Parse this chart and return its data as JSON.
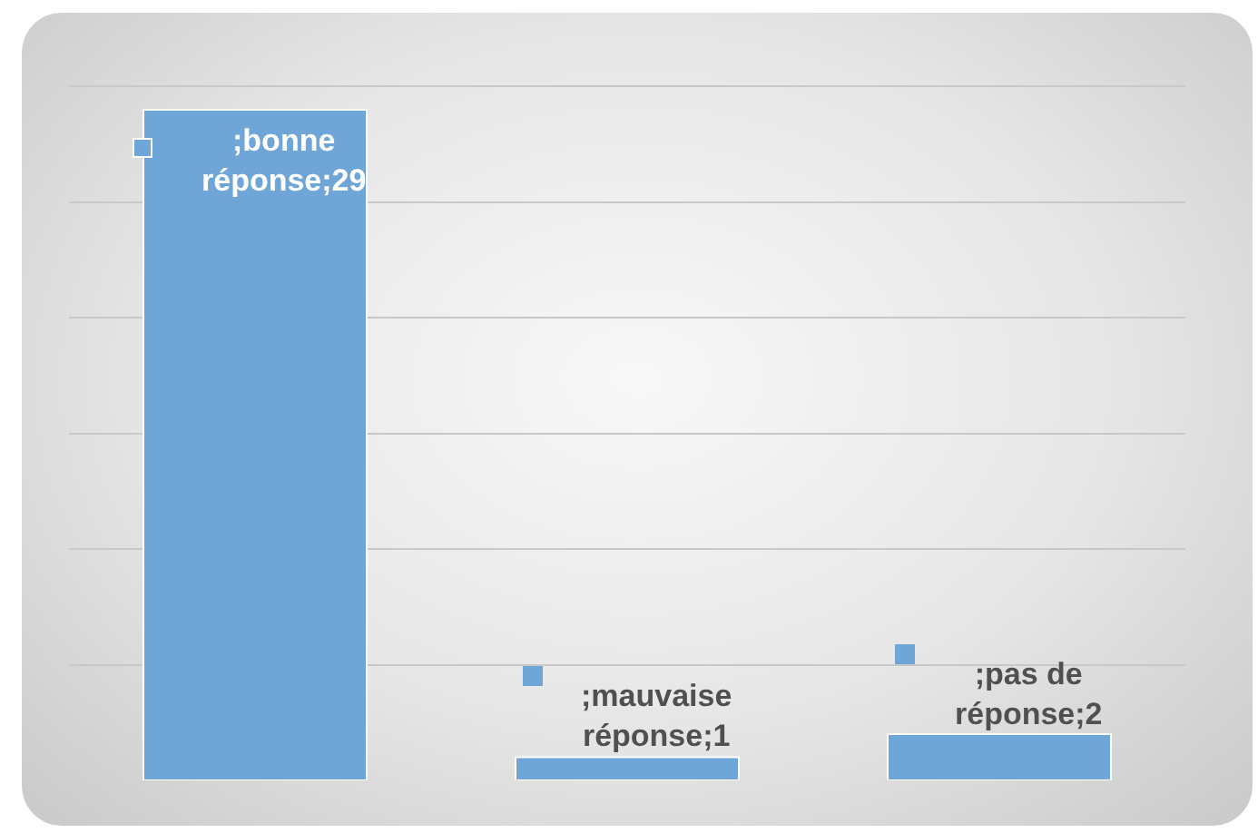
{
  "chart_data": {
    "type": "bar",
    "categories": [
      null,
      null,
      null
    ],
    "values": [
      29,
      1,
      2
    ],
    "color": "#6fa5d7",
    "value_labels": [
      ";bonne réponse;29",
      ";mauvaise réponse;1",
      ";pas de réponse;2"
    ],
    "grid": "y",
    "tick_labels": false
  }
}
